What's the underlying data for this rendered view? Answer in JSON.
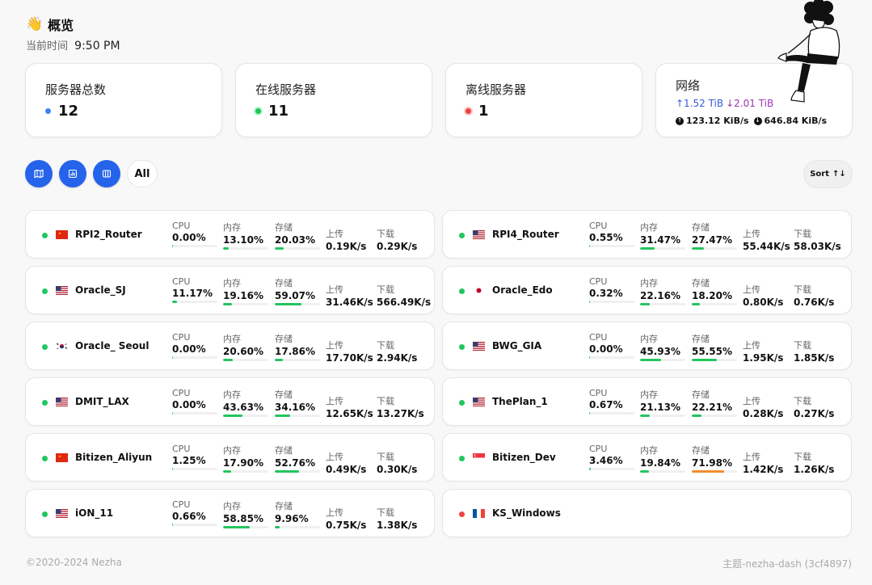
{
  "header": {
    "emoji": "👋",
    "title": "概览",
    "time_label": "当前时间",
    "time_value": "9:50 PM"
  },
  "stats": {
    "total_label": "服务器总数",
    "total_value": "12",
    "online_label": "在线服务器",
    "online_value": "11",
    "offline_label": "离线服务器",
    "offline_value": "1",
    "network_label": "网络",
    "traffic_up": "↑1.52 TiB",
    "traffic_down": "↓2.01 TiB",
    "speed_up": "123.12 KiB/s",
    "speed_down": "646.84 KiB/s"
  },
  "toolbar": {
    "all_label": "All",
    "sort_label": "Sort",
    "sort_icon": "↑↓"
  },
  "labels": {
    "cpu": "CPU",
    "mem": "内存",
    "disk": "存储",
    "up": "上传",
    "down": "下载"
  },
  "colors": {
    "accent": "#2563eb",
    "online": "#22c55e",
    "offline": "#ef4444",
    "bar_normal": "#22c55e",
    "bar_warning": "#f08c2e"
  },
  "servers": [
    {
      "name": "RPI2_Router",
      "flag": "cn",
      "online": true,
      "cpu": "0.00%",
      "mem": "13.10%",
      "disk": "20.03%",
      "up": "0.19K/s",
      "down": "0.29K/s"
    },
    {
      "name": "RPI4_Router",
      "flag": "us",
      "online": true,
      "cpu": "0.55%",
      "mem": "31.47%",
      "disk": "27.47%",
      "up": "55.44K/s",
      "down": "58.03K/s"
    },
    {
      "name": "Oracle_SJ",
      "flag": "us",
      "online": true,
      "cpu": "11.17%",
      "mem": "19.16%",
      "disk": "59.07%",
      "up": "31.46K/s",
      "down": "566.49K/s"
    },
    {
      "name": "Oracle_Edo",
      "flag": "jp",
      "online": true,
      "cpu": "0.32%",
      "mem": "22.16%",
      "disk": "18.20%",
      "up": "0.80K/s",
      "down": "0.76K/s"
    },
    {
      "name": "Oracle_ Seoul",
      "flag": "kr",
      "online": true,
      "cpu": "0.00%",
      "mem": "20.60%",
      "disk": "17.86%",
      "up": "17.70K/s",
      "down": "2.94K/s"
    },
    {
      "name": "BWG_GIA",
      "flag": "us",
      "online": true,
      "cpu": "0.00%",
      "mem": "45.93%",
      "disk": "55.55%",
      "up": "1.95K/s",
      "down": "1.85K/s"
    },
    {
      "name": "DMIT_LAX",
      "flag": "us",
      "online": true,
      "cpu": "0.00%",
      "mem": "43.63%",
      "disk": "34.16%",
      "up": "12.65K/s",
      "down": "13.27K/s"
    },
    {
      "name": "ThePlan_1",
      "flag": "us",
      "online": true,
      "cpu": "0.67%",
      "mem": "21.13%",
      "disk": "22.21%",
      "up": "0.28K/s",
      "down": "0.27K/s"
    },
    {
      "name": "Bitizen_Aliyun",
      "flag": "cn",
      "online": true,
      "cpu": "1.25%",
      "mem": "17.90%",
      "disk": "52.76%",
      "up": "0.49K/s",
      "down": "0.30K/s"
    },
    {
      "name": "Bitizen_Dev",
      "flag": "sg",
      "online": true,
      "cpu": "3.46%",
      "mem": "19.84%",
      "disk": "71.98%",
      "up": "1.42K/s",
      "down": "1.26K/s"
    },
    {
      "name": "iON_11",
      "flag": "us",
      "online": true,
      "cpu": "0.66%",
      "mem": "58.85%",
      "disk": "9.96%",
      "up": "0.75K/s",
      "down": "1.38K/s"
    },
    {
      "name": "KS_Windows",
      "flag": "fr",
      "online": false
    }
  ],
  "footer": {
    "copyright": "©2020-2024 Nezha",
    "theme": "主题-nezha-dash (3cf4897)"
  }
}
